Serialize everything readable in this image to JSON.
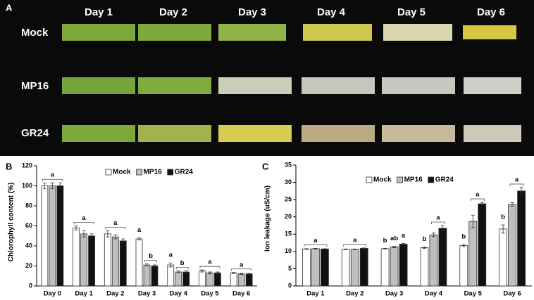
{
  "photo_panel": {
    "panel_label": "A",
    "columns": [
      "Day 1",
      "Day 2",
      "Day 3",
      "Day 4",
      "Day 5",
      "Day 6"
    ],
    "rows": [
      "Mock",
      "MP16",
      "GR24"
    ]
  },
  "chart_data": [
    {
      "type": "bar",
      "panel_label": "B",
      "ylabel": "Chlorophyll content (%)",
      "categories": [
        "Day 0",
        "Day 1",
        "Day 2",
        "Day 3",
        "Day 4",
        "Day 5",
        "Day 6"
      ],
      "series": [
        {
          "name": "Mock",
          "color": "#ffffff",
          "values": [
            100,
            58,
            52,
            47,
            21,
            15,
            13
          ],
          "errors": [
            3,
            2,
            3,
            1,
            2,
            1,
            0.5
          ]
        },
        {
          "name": "MP16",
          "color": "#bfbfbf",
          "values": [
            100,
            52,
            49,
            21,
            14,
            13,
            12
          ],
          "errors": [
            3,
            3,
            2,
            1,
            1,
            1,
            0.5
          ]
        },
        {
          "name": "GR24",
          "color": "#111111",
          "values": [
            100,
            50,
            45,
            20,
            14,
            13,
            12
          ],
          "errors": [
            3,
            2,
            2,
            1,
            1,
            1,
            0.5
          ]
        }
      ],
      "ylim": [
        0,
        120
      ],
      "yticks": [
        0,
        20,
        40,
        60,
        80,
        100,
        120
      ],
      "legend": "top-right",
      "annotations": [
        {
          "text": "a",
          "category": 0,
          "series": [
            0,
            2
          ]
        },
        {
          "text": "a",
          "category": 1,
          "series": [
            0,
            2
          ]
        },
        {
          "text": "a",
          "category": 2,
          "series": [
            0,
            2
          ]
        },
        {
          "text": "a",
          "category": 3,
          "series": [
            0,
            0
          ]
        },
        {
          "text": "b",
          "category": 3,
          "series": [
            1,
            2
          ]
        },
        {
          "text": "a",
          "category": 4,
          "series": [
            0,
            0
          ]
        },
        {
          "text": "b",
          "category": 4,
          "series": [
            1,
            2
          ]
        },
        {
          "text": "a",
          "category": 5,
          "series": [
            0,
            2
          ]
        },
        {
          "text": "a",
          "category": 6,
          "series": [
            0,
            2
          ]
        }
      ]
    },
    {
      "type": "bar",
      "panel_label": "C",
      "ylabel": "Ion leakage (uS/cm)",
      "categories": [
        "Day 1",
        "Day 2",
        "Day 3",
        "Day 4",
        "Day 5",
        "Day 6"
      ],
      "series": [
        {
          "name": "Mock",
          "color": "#ffffff",
          "values": [
            10.7,
            10.6,
            10.8,
            11.1,
            11.7,
            16.5
          ],
          "errors": [
            0.1,
            0.1,
            0.1,
            0.2,
            0.3,
            1.2
          ]
        },
        {
          "name": "MP16",
          "color": "#bfbfbf",
          "values": [
            10.8,
            10.6,
            11.3,
            14.8,
            18.7,
            23.6
          ],
          "errors": [
            0.1,
            0.1,
            0.2,
            0.5,
            1.8,
            0.5
          ]
        },
        {
          "name": "GR24",
          "color": "#111111",
          "values": [
            10.7,
            10.9,
            12.1,
            16.7,
            23.8,
            27.5
          ],
          "errors": [
            0.1,
            0.1,
            0.2,
            0.8,
            0.4,
            1.0
          ]
        }
      ],
      "ylim": [
        0,
        35
      ],
      "yticks": [
        0,
        5,
        10,
        15,
        20,
        25,
        30,
        35
      ],
      "legend": "top-center",
      "annotations": [
        {
          "text": "a",
          "category": 0,
          "series": [
            0,
            2
          ]
        },
        {
          "text": "a",
          "category": 1,
          "series": [
            0,
            2
          ]
        },
        {
          "text": "b",
          "category": 2,
          "series": [
            0,
            0
          ]
        },
        {
          "text": "ab",
          "category": 2,
          "series": [
            1,
            1
          ]
        },
        {
          "text": "a",
          "category": 2,
          "series": [
            2,
            2
          ]
        },
        {
          "text": "b",
          "category": 3,
          "series": [
            0,
            0
          ]
        },
        {
          "text": "a",
          "category": 3,
          "series": [
            1,
            2
          ]
        },
        {
          "text": "b",
          "category": 4,
          "series": [
            0,
            0
          ]
        },
        {
          "text": "a",
          "category": 4,
          "series": [
            1,
            2
          ]
        },
        {
          "text": "b",
          "category": 5,
          "series": [
            0,
            0
          ]
        },
        {
          "text": "a",
          "category": 5,
          "series": [
            1,
            2
          ]
        }
      ]
    }
  ]
}
